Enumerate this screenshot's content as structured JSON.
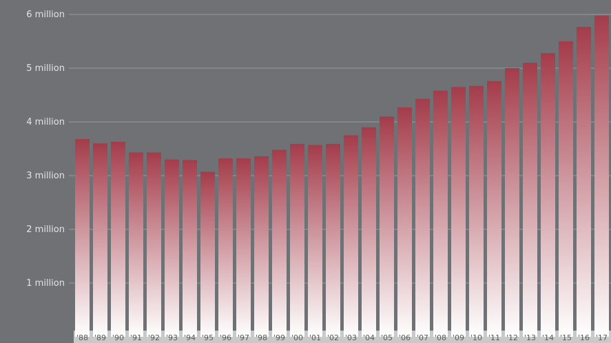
{
  "chart_data": {
    "type": "bar",
    "title": "",
    "xlabel": "",
    "ylabel": "",
    "ylim": [
      0,
      6000000
    ],
    "yticks": [
      1000000,
      2000000,
      3000000,
      4000000,
      5000000,
      6000000
    ],
    "ytick_labels": [
      "1 million",
      "2 million",
      "3 million",
      "4 million",
      "5 million",
      "6 million"
    ],
    "grid": true,
    "categories": [
      "'88",
      "'89",
      "'90",
      "'91",
      "'92",
      "'93",
      "'94",
      "'95",
      "'96",
      "'97",
      "'98",
      "'99",
      "'00",
      "'01",
      "'02",
      "'03",
      "'04",
      "'05",
      "'06",
      "'07",
      "'08",
      "'09",
      "'10",
      "'11",
      "'12",
      "'13",
      "'14",
      "'15",
      "'16",
      "'17"
    ],
    "values": [
      3680000,
      3600000,
      3630000,
      3430000,
      3430000,
      3300000,
      3290000,
      3070000,
      3320000,
      3320000,
      3360000,
      3480000,
      3590000,
      3570000,
      3590000,
      3750000,
      3900000,
      4100000,
      4270000,
      4430000,
      4580000,
      4650000,
      4670000,
      4760000,
      5000000,
      5100000,
      5280000,
      5500000,
      5770000,
      5980000
    ],
    "colors": {
      "background": "#6f7174",
      "bar_top": "#a43c4a",
      "bar_bottom": "#ffffff",
      "gridline": "#9a9c9f",
      "axis_band": "#c9c9c9"
    }
  }
}
